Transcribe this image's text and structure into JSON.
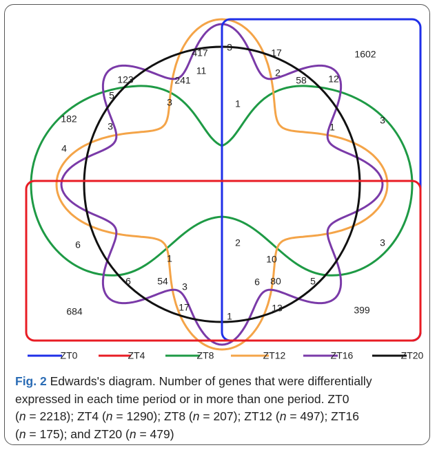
{
  "diagram": {
    "sets": [
      {
        "name": "ZT0",
        "color": "#1f2fe8"
      },
      {
        "name": "ZT4",
        "color": "#e81c24"
      },
      {
        "name": "ZT8",
        "color": "#1e9a45"
      },
      {
        "name": "ZT12",
        "color": "#f4a448"
      },
      {
        "name": "ZT16",
        "color": "#7a3aa8"
      },
      {
        "name": "ZT20",
        "color": "#111111"
      }
    ],
    "regions": [
      "417",
      "3",
      "17",
      "1602",
      "123",
      "241",
      "11",
      "2",
      "58",
      "12",
      "5",
      "3",
      "1",
      "182",
      "3",
      "1",
      "3",
      "4",
      "6",
      "2",
      "3",
      "1",
      "10",
      "6",
      "54",
      "3",
      "6",
      "80",
      "5",
      "684",
      "17",
      "1",
      "13",
      "399"
    ]
  },
  "caption": {
    "label": "Fig. 2",
    "lines": [
      [
        "Edwards's diagram. Number of genes that were differentially"
      ],
      [
        "expressed in each time period or in more than one period. ZT0"
      ],
      [
        "(",
        "n",
        " = 2218); ZT4 (",
        "n",
        " = 1290); ZT8 (",
        "n",
        " = 207); ZT12 (",
        "n",
        " = 497); ZT16"
      ],
      [
        "(",
        "n",
        " = 175); and ZT20 (",
        "n",
        " = 479)"
      ]
    ]
  }
}
